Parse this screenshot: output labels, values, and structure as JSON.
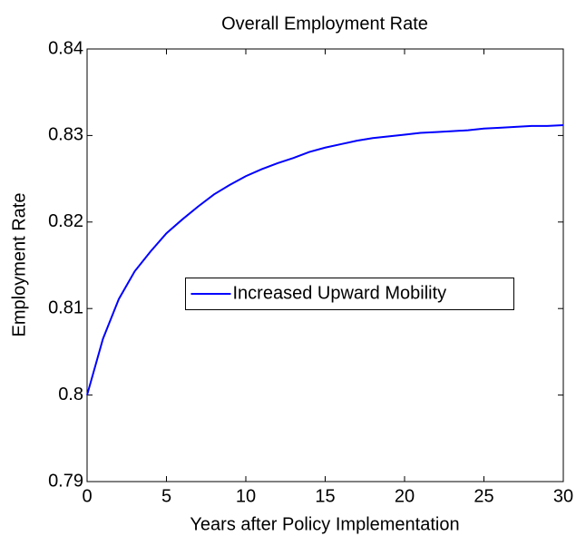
{
  "chart_data": {
    "type": "line",
    "title": "Overall Employment Rate",
    "x_label": "Years after Policy Implementation",
    "y_label": "Employment Rate",
    "x": [
      0,
      1,
      2,
      3,
      4,
      5,
      6,
      7,
      8,
      9,
      10,
      11,
      12,
      13,
      14,
      15,
      16,
      17,
      18,
      19,
      20,
      21,
      22,
      23,
      24,
      25,
      26,
      27,
      28,
      29,
      30
    ],
    "series": [
      {
        "name": "Increased Upward Mobility",
        "color": "#0000ff",
        "values": [
          0.8,
          0.8065,
          0.8111,
          0.8143,
          0.8166,
          0.8187,
          0.8203,
          0.8218,
          0.8232,
          0.8243,
          0.8253,
          0.8261,
          0.8268,
          0.8274,
          0.8281,
          0.8286,
          0.829,
          0.8294,
          0.8297,
          0.8299,
          0.8301,
          0.8303,
          0.8304,
          0.8305,
          0.8306,
          0.8308,
          0.8309,
          0.831,
          0.8311,
          0.8311,
          0.8312
        ]
      }
    ],
    "xlim": [
      0,
      30
    ],
    "xticks": [
      0,
      5,
      10,
      15,
      20,
      25,
      30
    ],
    "ylim": [
      0.79,
      0.84
    ],
    "yticks": [
      0.79,
      0.8,
      0.81,
      0.82,
      0.83,
      0.84
    ],
    "grid": false,
    "legend_position": "center"
  }
}
